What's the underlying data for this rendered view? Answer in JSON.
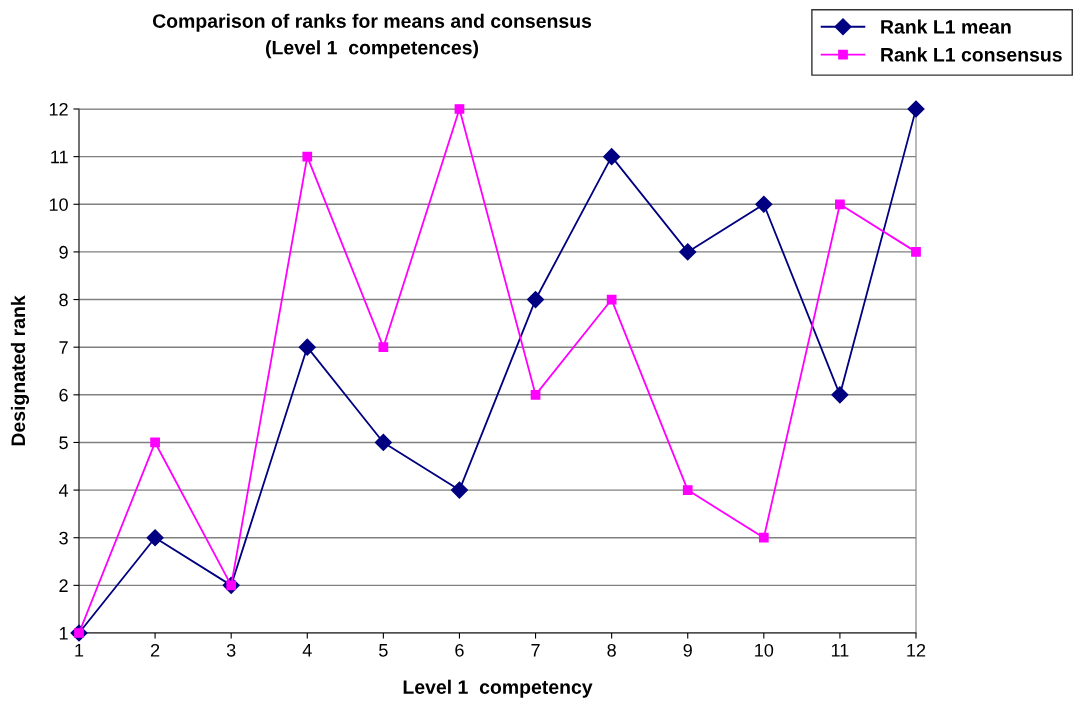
{
  "chart_data": {
    "type": "line",
    "title": "Comparison of ranks for means and consensus\n(Level 1  competences)",
    "xlabel": "Level 1  competency",
    "ylabel": "Designated rank",
    "x": [
      1,
      2,
      3,
      4,
      5,
      6,
      7,
      8,
      9,
      10,
      11,
      12
    ],
    "series": [
      {
        "name": "Rank L1 mean",
        "color": "#000080",
        "marker": "diamond",
        "values": [
          1,
          3,
          2,
          7,
          5,
          4,
          8,
          11,
          9,
          10,
          6,
          12
        ]
      },
      {
        "name": "Rank L1 consensus",
        "color": "#ff00ff",
        "marker": "square",
        "values": [
          1,
          5,
          2,
          11,
          7,
          12,
          6,
          8,
          4,
          3,
          10,
          9
        ]
      }
    ],
    "xlim": [
      1,
      12
    ],
    "xticks": [
      1,
      2,
      3,
      4,
      5,
      6,
      7,
      8,
      9,
      10,
      11,
      12
    ],
    "ylim": [
      1,
      12
    ],
    "yticks": [
      1,
      2,
      3,
      4,
      5,
      6,
      7,
      8,
      9,
      10,
      11,
      12
    ],
    "grid": "y",
    "legend": "top right",
    "line_style": "solid"
  }
}
